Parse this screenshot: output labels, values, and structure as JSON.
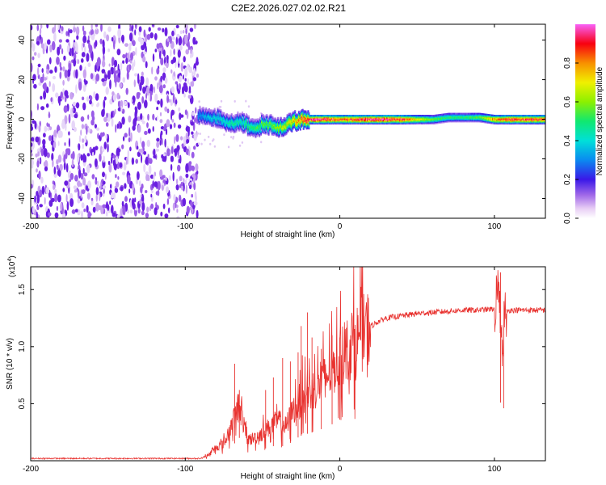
{
  "title": "C2E2.2026.027.02.02.R21",
  "chart_data": [
    {
      "type": "heatmap",
      "title": "C2E2.2026.027.02.02.R21",
      "xlabel": "Height of straight line (km)",
      "ylabel": "Frequency (Hz)",
      "xlim": [
        -200,
        133
      ],
      "ylim": [
        -50,
        48
      ],
      "xticks": [
        -200,
        -100,
        0,
        100
      ],
      "yticks": [
        -40,
        -20,
        0,
        20,
        40
      ],
      "colorbar": {
        "label": "Normalized spectral amplitude",
        "range": [
          0,
          1
        ],
        "ticks": [
          0.0,
          0.2,
          0.4,
          0.6,
          0.8
        ]
      },
      "noise_region_x": [
        -200,
        -92
      ],
      "signal_ridge": {
        "x": [
          -92,
          -85,
          -80,
          -75,
          -70,
          -65,
          -60,
          -55,
          -50,
          -45,
          -40,
          -35,
          -30,
          -25,
          -20,
          -15,
          -10,
          -5,
          0,
          10,
          20,
          30,
          40,
          50,
          60,
          70,
          80,
          90,
          100,
          110,
          120,
          133
        ],
        "freq": [
          2,
          1,
          1,
          -1,
          -2,
          -1,
          -3,
          -5,
          -2,
          -3,
          -4,
          -3,
          -1,
          0,
          0,
          0,
          0,
          0,
          0,
          0,
          0,
          0,
          0,
          0,
          0,
          1,
          1,
          1,
          0,
          0,
          0,
          0
        ],
        "amplitude": [
          0.3,
          0.35,
          0.4,
          0.4,
          0.45,
          0.45,
          0.5,
          0.5,
          0.55,
          0.55,
          0.6,
          0.65,
          0.75,
          0.85,
          0.9,
          0.95,
          0.95,
          0.9,
          0.85,
          0.9,
          0.95,
          0.95,
          0.9,
          0.7,
          0.55,
          0.5,
          0.5,
          0.55,
          0.8,
          0.9,
          0.9,
          0.85
        ]
      }
    },
    {
      "type": "line",
      "xlabel": "Height of straight line (km)",
      "ylabel": "SNR (10 * v/v)",
      "y_multiplier": "(x10",
      "y_multiplier_exp": "4",
      "xlim": [
        -200,
        133
      ],
      "ylim": [
        0,
        1.7
      ],
      "xticks": [
        -200,
        -100,
        0,
        100
      ],
      "yticks": [
        0.5,
        1.0,
        1.5
      ],
      "ytick_labels": [
        "0.5",
        "1.0",
        "1.5"
      ],
      "series": [
        {
          "name": "SNR",
          "color": "#e8312e",
          "x": [
            -200,
            -150,
            -100,
            -90,
            -85,
            -80,
            -75,
            -70,
            -65,
            -60,
            -55,
            -50,
            -45,
            -40,
            -35,
            -30,
            -25,
            -20,
            -15,
            -10,
            -5,
            0,
            5,
            10,
            15,
            20,
            25,
            30,
            40,
            50,
            60,
            70,
            80,
            90,
            100,
            103,
            105,
            107,
            110,
            120,
            133
          ],
          "y": [
            0.02,
            0.02,
            0.02,
            0.02,
            0.05,
            0.12,
            0.15,
            0.3,
            0.5,
            0.18,
            0.2,
            0.25,
            0.3,
            0.35,
            0.3,
            0.45,
            0.55,
            0.6,
            0.65,
            0.72,
            0.8,
            0.9,
            0.98,
            1.05,
            1.12,
            1.18,
            1.22,
            1.25,
            1.27,
            1.29,
            1.3,
            1.31,
            1.32,
            1.32,
            1.33,
            1.55,
            1.0,
            1.3,
            1.32,
            1.32,
            1.32
          ],
          "spikes": [
            {
              "x": -68,
              "y": 0.85
            },
            {
              "x": -65,
              "y": 0.62
            },
            {
              "x": -48,
              "y": 0.62
            },
            {
              "x": -43,
              "y": 0.73
            },
            {
              "x": -37,
              "y": 0.9
            },
            {
              "x": -32,
              "y": 0.87
            },
            {
              "x": -27,
              "y": 0.95
            },
            {
              "x": -25,
              "y": 1.18
            },
            {
              "x": -21,
              "y": 1.3
            },
            {
              "x": -18,
              "y": 1.08
            },
            {
              "x": -12,
              "y": 0.98
            },
            {
              "x": -5,
              "y": 1.1
            },
            {
              "x": 0,
              "y": 1.08
            },
            {
              "x": 104,
              "y": 1.65
            },
            {
              "x": 106,
              "y": 0.93
            }
          ]
        }
      ]
    }
  ]
}
